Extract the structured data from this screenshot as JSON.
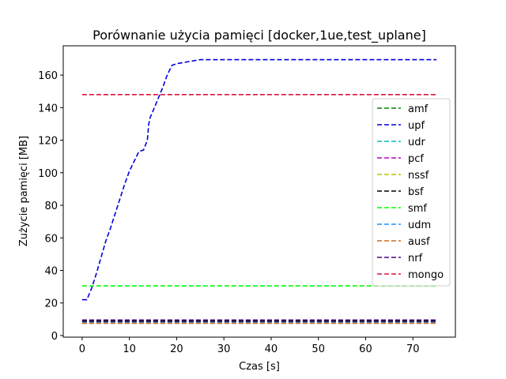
{
  "chart_data": {
    "type": "line",
    "title": "Porównanie użycia pamięci [docker,1ue,test_uplane]",
    "xlabel": "Czas [s]",
    "ylabel": "Zużycie pamięci [MB]",
    "xlim": [
      -4,
      79
    ],
    "ylim": [
      -1,
      178
    ],
    "xticks": [
      0,
      10,
      20,
      30,
      40,
      50,
      60,
      70
    ],
    "yticks": [
      0,
      20,
      40,
      60,
      80,
      100,
      120,
      140,
      160
    ],
    "grid": false,
    "legend_position": "center-right",
    "line_style": "dashed",
    "series": [
      {
        "name": "amf",
        "color": "#008000",
        "x": [
          0,
          75
        ],
        "y": [
          9.2,
          9.2
        ]
      },
      {
        "name": "upf",
        "color": "#0000dd",
        "x": [
          0,
          1,
          2,
          3,
          4,
          5,
          6,
          7,
          8,
          9,
          10,
          11,
          12,
          13,
          13.8,
          14.1,
          14.4,
          15,
          16,
          17,
          18,
          19,
          20,
          22,
          24,
          25,
          30,
          40,
          50,
          60,
          70,
          75
        ],
        "y": [
          22,
          22,
          29,
          38,
          48,
          58,
          66,
          75,
          84,
          93,
          101,
          107,
          113,
          114,
          120,
          130,
          134,
          138,
          145,
          152,
          160,
          166,
          167,
          168,
          169,
          169.5,
          169.5,
          169.5,
          169.5,
          169.5,
          169.5,
          169.5
        ]
      },
      {
        "name": "udr",
        "color": "#00bfbf",
        "x": [
          0,
          75
        ],
        "y": [
          8.3,
          8.3
        ]
      },
      {
        "name": "pcf",
        "color": "#bf00bf",
        "x": [
          0,
          75
        ],
        "y": [
          8.6,
          8.6
        ]
      },
      {
        "name": "nssf",
        "color": "#bfbf00",
        "x": [
          0,
          75
        ],
        "y": [
          7.8,
          7.8
        ]
      },
      {
        "name": "bsf",
        "color": "#000000",
        "x": [
          0,
          75
        ],
        "y": [
          8.9,
          8.9
        ]
      },
      {
        "name": "smf",
        "color": "#00ff00",
        "x": [
          0,
          75
        ],
        "y": [
          30.5,
          30.5
        ]
      },
      {
        "name": "udm",
        "color": "#1e90ff",
        "x": [
          0,
          75
        ],
        "y": [
          8.0,
          8.0
        ]
      },
      {
        "name": "ausf",
        "color": "#d2691e",
        "x": [
          0,
          75
        ],
        "y": [
          7.5,
          7.5
        ]
      },
      {
        "name": "nrf",
        "color": "#4b0082",
        "x": [
          0,
          75
        ],
        "y": [
          9.5,
          9.5
        ]
      },
      {
        "name": "mongo",
        "color": "#dc143c",
        "x": [
          0,
          75
        ],
        "y": [
          148,
          148
        ]
      }
    ]
  }
}
